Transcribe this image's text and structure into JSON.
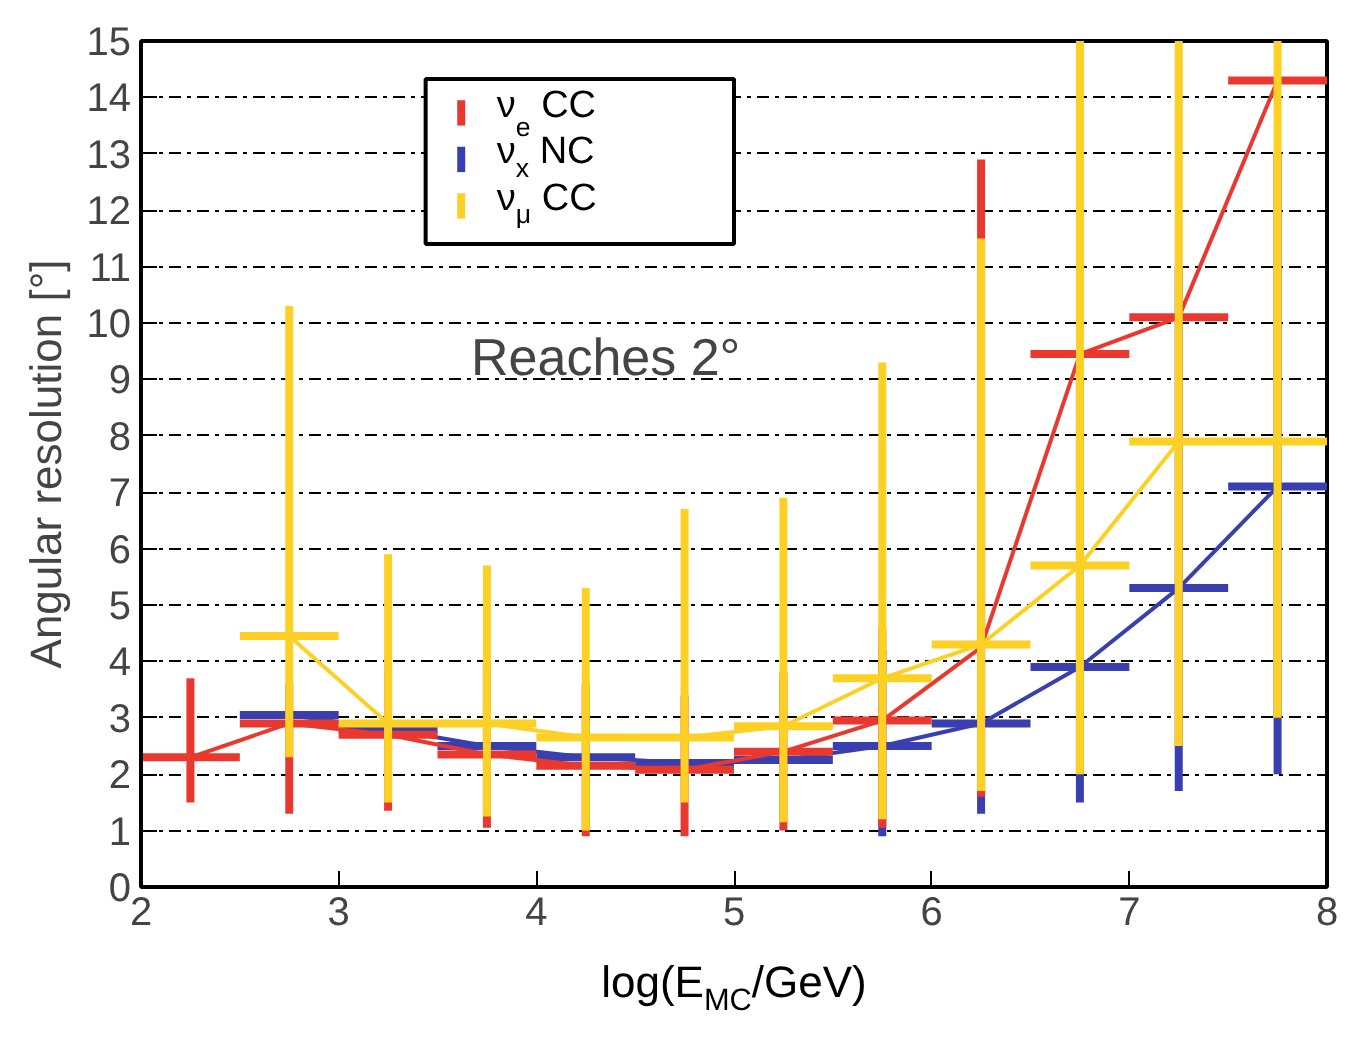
{
  "chart_data": {
    "type": "line",
    "xlabel": "log(E$_{MC}$/GeV)",
    "ylabel": "Angular resolution [°]",
    "annotations": [
      "Reaches 2°"
    ],
    "x": [
      2.25,
      2.75,
      3.25,
      3.75,
      4.25,
      4.75,
      5.25,
      5.75,
      6.25,
      6.75,
      7.25,
      7.75
    ],
    "xlim": [
      2,
      8
    ],
    "ylim": [
      0,
      15
    ],
    "xticks": [
      2,
      3,
      4,
      5,
      6,
      7,
      8
    ],
    "yticks": [
      0,
      1,
      2,
      3,
      4,
      5,
      6,
      7,
      8,
      9,
      10,
      11,
      12,
      13,
      14,
      15
    ],
    "grid": "y",
    "legend": "top",
    "marker": "none",
    "line_style": "solid",
    "series": [
      {
        "name": "ν$_{e}$ CC",
        "color": "#e8382f",
        "values": [
          2.3,
          2.9,
          2.7,
          2.35,
          2.15,
          2.08,
          2.4,
          2.95,
          4.25,
          9.45,
          10.1,
          14.3
        ],
        "xerrors": [
          0.25,
          0.25,
          0.25,
          0.25,
          0.25,
          0.25,
          0.25,
          0.25,
          null,
          0.25,
          0.25,
          0.25
        ],
        "errors": [
          [
            1.5,
            3.7
          ],
          [
            1.3,
            3.6
          ],
          [
            1.35,
            3.9
          ],
          [
            1.05,
            4.0
          ],
          [
            0.9,
            3.6
          ],
          [
            0.9,
            3.4
          ],
          [
            1.0,
            3.8
          ],
          [
            1.05,
            4.6
          ],
          [
            1.6,
            12.9
          ],
          null,
          null,
          null
        ]
      },
      {
        "name": "ν$_{x}$ NC",
        "color": "#3a3fb0",
        "values": [
          null,
          3.05,
          2.8,
          2.5,
          2.3,
          2.2,
          2.25,
          2.5,
          2.9,
          3.9,
          5.3,
          7.1
        ],
        "xerrors": [
          null,
          0.25,
          0.25,
          0.25,
          0.25,
          0.25,
          0.25,
          0.25,
          0.25,
          0.25,
          0.25,
          0.25
        ],
        "errors": [
          null,
          null,
          null,
          null,
          null,
          null,
          null,
          [
            0.9,
            4.2
          ],
          [
            1.3,
            7.0
          ],
          [
            1.5,
            9.0
          ],
          [
            1.7,
            11.0
          ],
          [
            2.0,
            13.0
          ]
        ]
      },
      {
        "name": "ν$_{μ}$ CC",
        "color": "#fdd026",
        "values": [
          null,
          4.45,
          2.9,
          2.9,
          2.65,
          2.65,
          2.85,
          3.7,
          4.3,
          5.7,
          7.9,
          7.9
        ],
        "xerrors": [
          null,
          0.25,
          0.25,
          0.25,
          0.25,
          0.25,
          0.25,
          0.25,
          0.25,
          0.25,
          0.25,
          0.25
        ],
        "errors": [
          null,
          [
            2.3,
            10.3
          ],
          [
            1.5,
            5.9
          ],
          [
            1.25,
            5.7
          ],
          [
            1.0,
            5.3
          ],
          [
            1.5,
            6.7
          ],
          [
            1.15,
            6.9
          ],
          [
            1.2,
            9.3
          ],
          [
            1.7,
            11.5
          ],
          [
            2.0,
            15
          ],
          [
            2.5,
            15
          ],
          [
            3.0,
            15
          ]
        ]
      }
    ]
  }
}
